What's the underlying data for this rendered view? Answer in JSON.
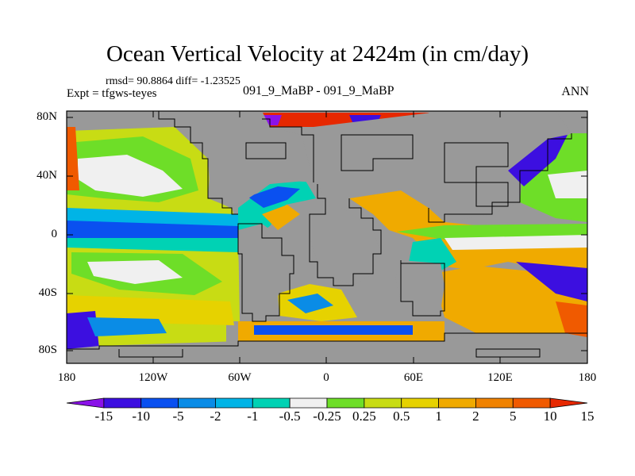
{
  "title": "Ocean Vertical Velocity at 2424m (in cm/day)",
  "stats": "rmsd= 90.8864 diff= -1.23525",
  "experiment": "Expt = tfgws-teyes",
  "case_label": "091_9_MaBP - 091_9_MaBP",
  "season": "ANN",
  "axes": {
    "lat_labels": [
      "80N",
      "40N",
      "0",
      "40S",
      "80S"
    ],
    "lon_labels": [
      "180",
      "120W",
      "60W",
      "0",
      "60E",
      "120E",
      "180"
    ]
  },
  "colorbar": {
    "labels": [
      "-15",
      "-10",
      "-5",
      "-2",
      "-1",
      "-0.5",
      "-0.25",
      "0.25",
      "0.5",
      "1",
      "2",
      "5",
      "10",
      "15"
    ],
    "colors": [
      "#8a12e8",
      "#3c0fe0",
      "#0a50f0",
      "#0a8ce6",
      "#00b4e6",
      "#00d2b4",
      "#f0f0f0",
      "#6ede28",
      "#c8dc14",
      "#e6d200",
      "#f0aa00",
      "#f08200",
      "#f05a00",
      "#e62800"
    ]
  },
  "map_colors": {
    "land": "#999999",
    "coast": "#000000"
  }
}
